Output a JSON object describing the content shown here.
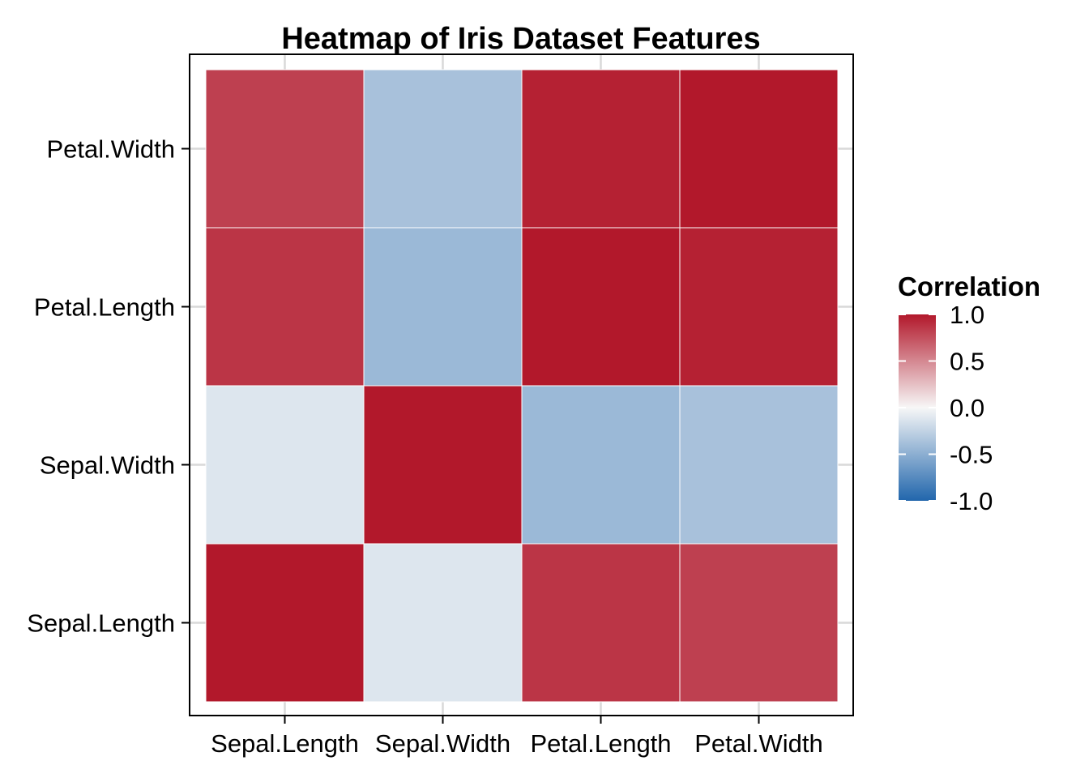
{
  "chart_data": {
    "type": "heatmap",
    "title": "Heatmap of Iris Dataset Features",
    "x_categories": [
      "Sepal.Length",
      "Sepal.Width",
      "Petal.Length",
      "Petal.Width"
    ],
    "y_categories": [
      "Sepal.Length",
      "Sepal.Width",
      "Petal.Length",
      "Petal.Width"
    ],
    "values": [
      [
        1.0,
        -0.12,
        0.87,
        0.82
      ],
      [
        -0.12,
        1.0,
        -0.43,
        -0.37
      ],
      [
        0.87,
        -0.43,
        1.0,
        0.96
      ],
      [
        0.82,
        -0.37,
        0.96,
        1.0
      ]
    ],
    "legend": {
      "title": "Correlation",
      "position": "right",
      "ticks": [
        1.0,
        0.5,
        0.0,
        -0.5,
        -1.0
      ],
      "tick_labels": [
        "1.0",
        "0.5",
        "0.0",
        "-0.5",
        "-1.0"
      ],
      "limits": [
        -1,
        1
      ]
    },
    "colors": {
      "low": "#2166ac",
      "mid": "#f7f7f7",
      "high": "#b2182b",
      "grid": "#d9d9d9",
      "tile_border": "#ffffff",
      "panel_border": "#000000"
    },
    "grid": true
  }
}
